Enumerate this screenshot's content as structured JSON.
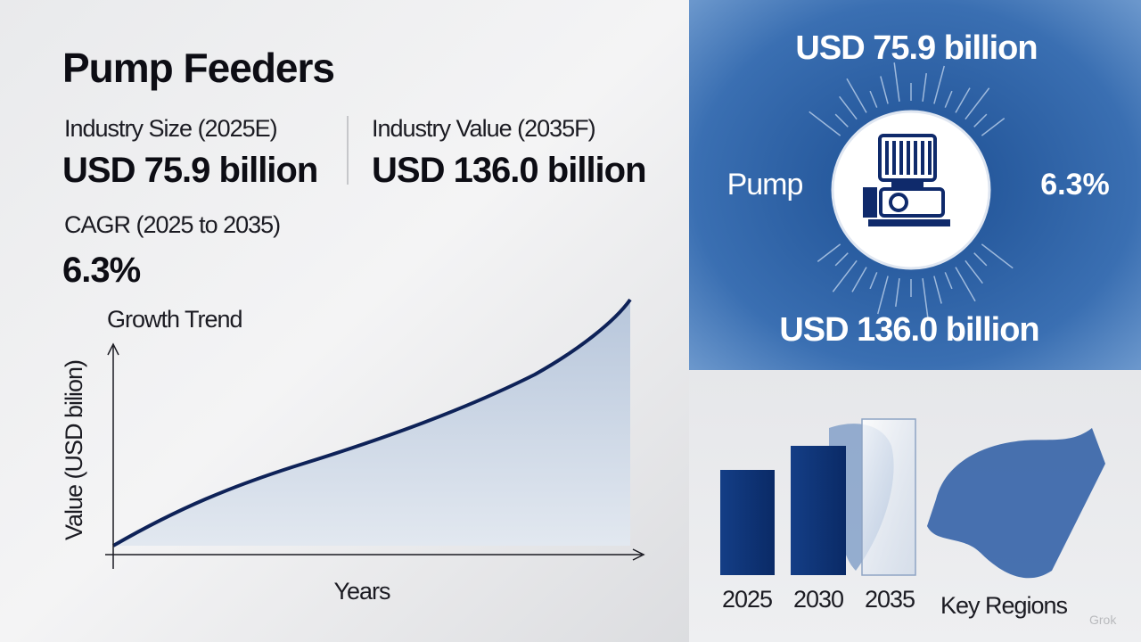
{
  "title": "Pump Feeders",
  "metrics": [
    {
      "label": "Industry Size (2025E)",
      "value": "USD 75.9 billion"
    },
    {
      "label": "Industry Value (2035F)",
      "value": "USD 136.0 billion"
    },
    {
      "label": "CAGR (2025 to 2035)",
      "value": "6.3%"
    }
  ],
  "growth_chart": {
    "title": "Growth Trend",
    "y_label": "Value (USD bilion)",
    "x_label": "Years"
  },
  "badge": {
    "top": "USD 75.9 billion",
    "left": "Pump",
    "right": "6.3%",
    "bottom": "USD 136.0 billion"
  },
  "regions": {
    "years": [
      "2025",
      "2030",
      "2035"
    ],
    "label": "Key Regions"
  },
  "watermark": "Grok"
}
